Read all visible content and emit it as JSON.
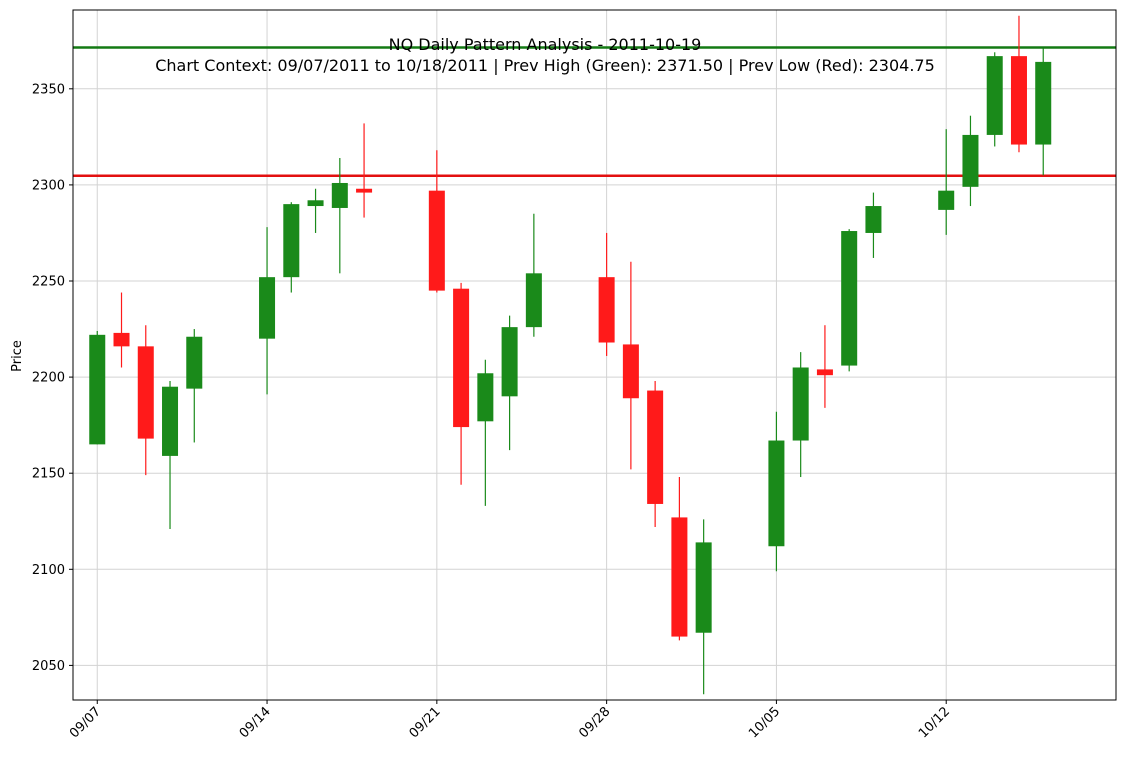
{
  "chart_data": {
    "type": "candlestick",
    "title": "NQ Daily Pattern Analysis - 2011-10-19",
    "subtitle": "Chart Context: 09/07/2011 to 10/18/2011 | Prev High (Green): 2371.50 | Prev Low (Red): 2304.75",
    "ylabel": "Price",
    "xlabel": "",
    "grid": true,
    "ylim": [
      2032,
      2391
    ],
    "y_ticks": [
      2050,
      2100,
      2150,
      2200,
      2250,
      2300,
      2350
    ],
    "x_ticks": [
      {
        "label": "09/07",
        "date": "2011-09-07"
      },
      {
        "label": "09/14",
        "date": "2011-09-14"
      },
      {
        "label": "09/21",
        "date": "2011-09-21"
      },
      {
        "label": "09/28",
        "date": "2011-09-28"
      },
      {
        "label": "10/05",
        "date": "2011-10-05"
      },
      {
        "label": "10/12",
        "date": "2011-10-12"
      }
    ],
    "xlim": [
      "2011-09-06",
      "2011-10-19"
    ],
    "up_color": "#1a8a1a",
    "down_color": "#ff1a1a",
    "reference_lines": [
      {
        "value": 2371.5,
        "color": "#137a13"
      },
      {
        "value": 2304.75,
        "color": "#e31010"
      }
    ],
    "candles": [
      {
        "date": "2011-09-07",
        "open": 2165,
        "high": 2224,
        "low": 2165,
        "close": 2222
      },
      {
        "date": "2011-09-08",
        "open": 2223,
        "high": 2244,
        "low": 2205,
        "close": 2216
      },
      {
        "date": "2011-09-09",
        "open": 2216,
        "high": 2227,
        "low": 2149,
        "close": 2168
      },
      {
        "date": "2011-09-10",
        "open": 2159,
        "high": 2198,
        "low": 2121,
        "close": 2195
      },
      {
        "date": "2011-09-11",
        "open": 2194,
        "high": 2225,
        "low": 2166,
        "close": 2221
      },
      {
        "date": "2011-09-14",
        "open": 2220,
        "high": 2278,
        "low": 2191,
        "close": 2252
      },
      {
        "date": "2011-09-15",
        "open": 2252,
        "high": 2291,
        "low": 2244,
        "close": 2290
      },
      {
        "date": "2011-09-16",
        "open": 2289,
        "high": 2298,
        "low": 2275,
        "close": 2292
      },
      {
        "date": "2011-09-17",
        "open": 2288,
        "high": 2314,
        "low": 2254,
        "close": 2301
      },
      {
        "date": "2011-09-18",
        "open": 2298,
        "high": 2332,
        "low": 2283,
        "close": 2296
      },
      {
        "date": "2011-09-21",
        "open": 2297,
        "high": 2318,
        "low": 2244,
        "close": 2245
      },
      {
        "date": "2011-09-22",
        "open": 2246,
        "high": 2249,
        "low": 2144,
        "close": 2174
      },
      {
        "date": "2011-09-23",
        "open": 2177,
        "high": 2209,
        "low": 2133,
        "close": 2202
      },
      {
        "date": "2011-09-24",
        "open": 2190,
        "high": 2232,
        "low": 2162,
        "close": 2226
      },
      {
        "date": "2011-09-25",
        "open": 2226,
        "high": 2285,
        "low": 2221,
        "close": 2254
      },
      {
        "date": "2011-09-28",
        "open": 2252,
        "high": 2275,
        "low": 2211,
        "close": 2218
      },
      {
        "date": "2011-09-29",
        "open": 2217,
        "high": 2260,
        "low": 2152,
        "close": 2189
      },
      {
        "date": "2011-09-30",
        "open": 2193,
        "high": 2198,
        "low": 2122,
        "close": 2134
      },
      {
        "date": "2011-10-01",
        "open": 2127,
        "high": 2148,
        "low": 2063,
        "close": 2065
      },
      {
        "date": "2011-10-02",
        "open": 2067,
        "high": 2126,
        "low": 2035,
        "close": 2114
      },
      {
        "date": "2011-10-05",
        "open": 2112,
        "high": 2182,
        "low": 2099,
        "close": 2167
      },
      {
        "date": "2011-10-06",
        "open": 2167,
        "high": 2213,
        "low": 2148,
        "close": 2205
      },
      {
        "date": "2011-10-07",
        "open": 2204,
        "high": 2227,
        "low": 2184,
        "close": 2201
      },
      {
        "date": "2011-10-08",
        "open": 2206,
        "high": 2277,
        "low": 2203,
        "close": 2276
      },
      {
        "date": "2011-10-09",
        "open": 2275,
        "high": 2296,
        "low": 2262,
        "close": 2289
      },
      {
        "date": "2011-10-12",
        "open": 2287,
        "high": 2329,
        "low": 2274,
        "close": 2297
      },
      {
        "date": "2011-10-13",
        "open": 2299,
        "high": 2336,
        "low": 2289,
        "close": 2326
      },
      {
        "date": "2011-10-14",
        "open": 2326,
        "high": 2369,
        "low": 2320,
        "close": 2367
      },
      {
        "date": "2011-10-15",
        "open": 2367,
        "high": 2388,
        "low": 2317,
        "close": 2321
      },
      {
        "date": "2011-10-16",
        "open": 2321,
        "high": 2371,
        "low": 2305,
        "close": 2364
      }
    ]
  }
}
